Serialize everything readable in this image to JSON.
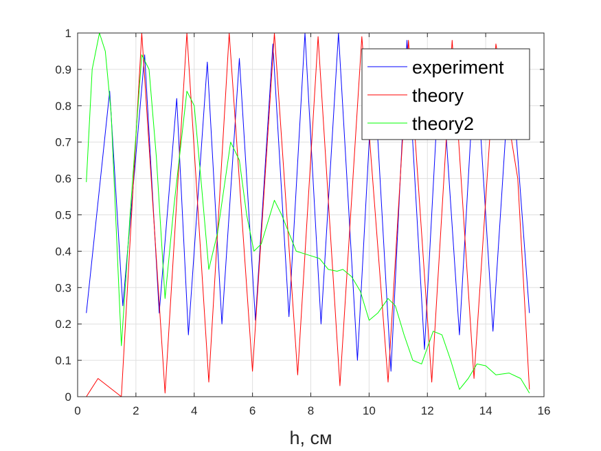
{
  "chart_data": {
    "type": "line",
    "title": "",
    "xlabel": "h, см",
    "ylabel": "",
    "xlim": [
      0,
      16
    ],
    "ylim": [
      0,
      1
    ],
    "xticks": [
      "0",
      "2",
      "4",
      "6",
      "8",
      "10",
      "12",
      "14",
      "16"
    ],
    "yticks": [
      "0",
      "0.1",
      "0.2",
      "0.3",
      "0.4",
      "0.5",
      "0.6",
      "0.7",
      "0.8",
      "0.9",
      "1"
    ],
    "grid": true,
    "legend_position": "top-right",
    "series": [
      {
        "name": "experiment",
        "color": "#0000ff",
        "x": [
          0.3,
          1.1,
          1.55,
          2.3,
          2.8,
          3.4,
          3.8,
          4.45,
          4.95,
          5.55,
          6.1,
          6.7,
          7.25,
          7.8,
          8.35,
          8.95,
          9.6,
          10.15,
          10.75,
          11.3,
          11.9,
          12.45,
          13.1,
          13.65,
          14.25,
          14.85,
          15.5
        ],
        "y": [
          0.23,
          0.84,
          0.25,
          0.94,
          0.23,
          0.82,
          0.17,
          0.92,
          0.2,
          0.93,
          0.21,
          0.97,
          0.22,
          1.0,
          0.2,
          1.0,
          0.1,
          0.92,
          0.07,
          0.98,
          0.13,
          0.95,
          0.17,
          0.95,
          0.18,
          0.93,
          0.23
        ]
      },
      {
        "name": "theory",
        "color": "#ff0000",
        "x": [
          0.3,
          0.7,
          1.5,
          2.2,
          3.0,
          3.75,
          4.5,
          5.2,
          6.0,
          6.75,
          7.55,
          8.25,
          9.0,
          9.75,
          10.65,
          11.35,
          12.15,
          12.85,
          13.6,
          14.35,
          15.1,
          15.5
        ],
        "y": [
          0.0,
          0.05,
          0.0,
          1.0,
          0.01,
          1.0,
          0.04,
          1.0,
          0.07,
          1.0,
          0.06,
          0.99,
          0.03,
          0.99,
          0.04,
          0.98,
          0.04,
          0.98,
          0.05,
          0.97,
          0.6,
          0.02
        ]
      },
      {
        "name": "theory2",
        "color": "#00ff00",
        "x": [
          0.3,
          0.5,
          0.75,
          0.95,
          1.15,
          1.5,
          1.8,
          2.2,
          2.45,
          2.7,
          3.0,
          3.3,
          3.75,
          4.0,
          4.25,
          4.5,
          4.8,
          5.25,
          5.55,
          5.8,
          6.05,
          6.3,
          6.75,
          7.0,
          7.25,
          7.5,
          7.9,
          8.3,
          8.6,
          8.9,
          9.1,
          9.4,
          9.7,
          10.0,
          10.3,
          10.65,
          10.9,
          11.2,
          11.5,
          11.8,
          12.2,
          12.5,
          12.8,
          13.1,
          13.4,
          13.7,
          14.0,
          14.35,
          14.8,
          15.2,
          15.5
        ],
        "y": [
          0.59,
          0.9,
          1.0,
          0.95,
          0.78,
          0.14,
          0.5,
          0.94,
          0.9,
          0.66,
          0.27,
          0.52,
          0.84,
          0.8,
          0.58,
          0.35,
          0.45,
          0.7,
          0.65,
          0.5,
          0.4,
          0.42,
          0.54,
          0.5,
          0.45,
          0.4,
          0.39,
          0.38,
          0.35,
          0.345,
          0.35,
          0.33,
          0.29,
          0.21,
          0.23,
          0.27,
          0.25,
          0.17,
          0.1,
          0.09,
          0.18,
          0.17,
          0.1,
          0.02,
          0.05,
          0.09,
          0.085,
          0.06,
          0.065,
          0.05,
          0.01
        ]
      }
    ]
  }
}
